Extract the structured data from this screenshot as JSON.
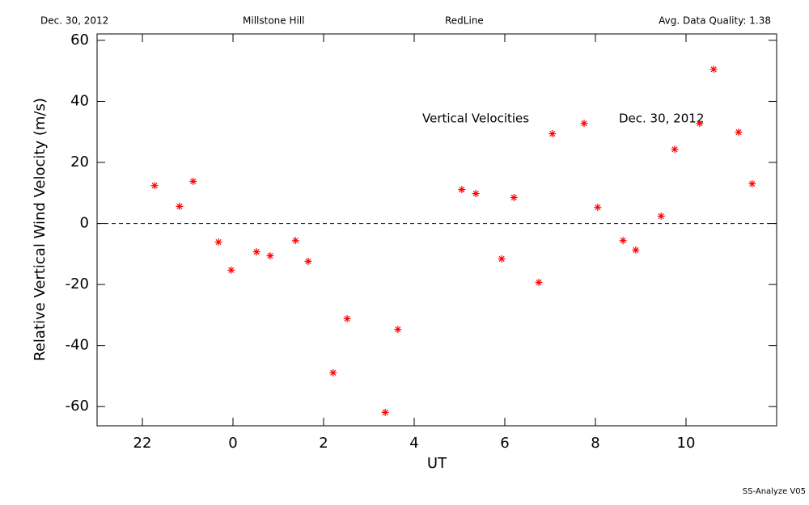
{
  "header": {
    "date": "Dec. 30, 2012",
    "site": "Millstone Hill",
    "instrument": "RedLine",
    "quality": "Avg. Data Quality: 1.38"
  },
  "footer": "SS-Analyze V05",
  "chart_data": {
    "type": "scatter",
    "x_label": "UT",
    "y_label": "Relative Vertical Wind Velocity (m/s)",
    "annotations": [
      "Vertical Velocities",
      "Dec. 30, 2012"
    ],
    "color": "#ff0000",
    "reference_line": 0,
    "xlim": [
      -3,
      12
    ],
    "xticks": [
      {
        "value": -2,
        "label": "22"
      },
      0,
      2,
      4,
      6,
      8,
      10
    ],
    "ylim": [
      -66.3,
      62.1
    ],
    "yticks": [
      -60,
      -40,
      -20,
      0,
      20,
      40,
      60
    ],
    "x": [
      -1.73,
      -1.18,
      -0.88,
      -0.32,
      -0.04,
      0.52,
      0.82,
      1.38,
      1.66,
      2.21,
      2.52,
      3.36,
      3.64,
      5.05,
      5.36,
      5.93,
      6.2,
      6.75,
      7.05,
      7.75,
      8.05,
      8.61,
      8.89,
      9.45,
      9.75,
      10.3,
      10.61,
      11.16,
      11.46
    ],
    "values": [
      12.4,
      5.6,
      13.8,
      -6.1,
      -15.3,
      -9.3,
      -10.6,
      -5.6,
      -12.4,
      -48.9,
      -31.2,
      -61.9,
      -34.7,
      11.1,
      9.8,
      -11.6,
      8.5,
      -19.3,
      29.4,
      32.8,
      5.3,
      -5.6,
      -8.7,
      2.4,
      24.3,
      32.8,
      50.5,
      29.9,
      13.0
    ]
  }
}
